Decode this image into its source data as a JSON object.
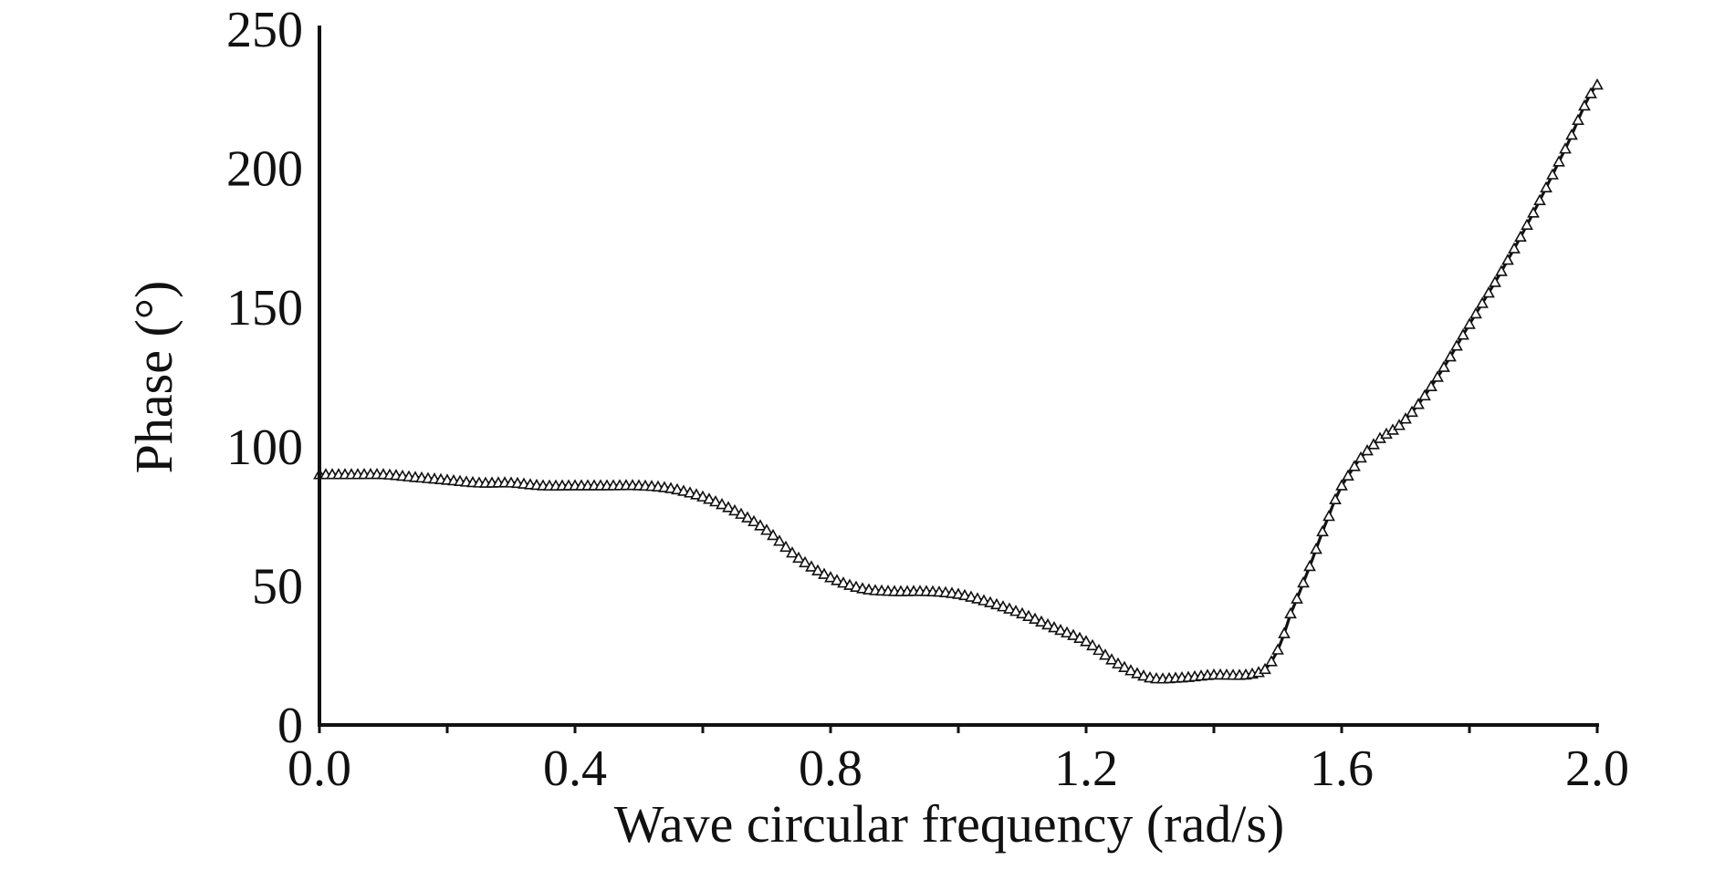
{
  "chart_data": {
    "type": "line",
    "title": "",
    "xlabel": "Wave circular frequency (rad/s)",
    "ylabel": "Phase (°)",
    "xlim": [
      0.0,
      2.0
    ],
    "ylim": [
      0,
      250
    ],
    "x_ticks": [
      0.0,
      0.4,
      0.8,
      1.2,
      1.6,
      2.0
    ],
    "x_tick_labels": [
      "0.0",
      "0.4",
      "0.8",
      "1.2",
      "1.6",
      "2.0"
    ],
    "x_minor_ticks": [
      0.2,
      0.6,
      1.0,
      1.4,
      1.8
    ],
    "y_ticks": [
      0,
      50,
      100,
      150,
      200,
      250
    ],
    "y_tick_labels": [
      "0",
      "50",
      "100",
      "150",
      "200",
      "250"
    ],
    "grid": false,
    "legend": "none",
    "line_color": "#111111",
    "marker": "triangle",
    "series": [
      {
        "x": [
          0.0,
          0.05,
          0.1,
          0.15,
          0.2,
          0.25,
          0.3,
          0.35,
          0.4,
          0.45,
          0.5,
          0.55,
          0.6,
          0.65,
          0.7,
          0.75,
          0.8,
          0.85,
          0.9,
          0.95,
          1.0,
          1.05,
          1.1,
          1.15,
          1.2,
          1.25,
          1.3,
          1.35,
          1.4,
          1.45,
          1.48,
          1.5,
          1.52,
          1.55,
          1.58,
          1.6,
          1.63,
          1.66,
          1.7,
          1.75,
          1.8,
          1.85,
          1.9,
          1.95,
          2.0
        ],
        "y": [
          90,
          90,
          90,
          89,
          88,
          87,
          87,
          86,
          86,
          86,
          86,
          85,
          82,
          77,
          70,
          60,
          53,
          49,
          48,
          48,
          47,
          44,
          40,
          35,
          30,
          22,
          17,
          17,
          18,
          18,
          20,
          27,
          40,
          57,
          75,
          86,
          96,
          103,
          110,
          125,
          144,
          163,
          184,
          207,
          230
        ]
      }
    ]
  }
}
